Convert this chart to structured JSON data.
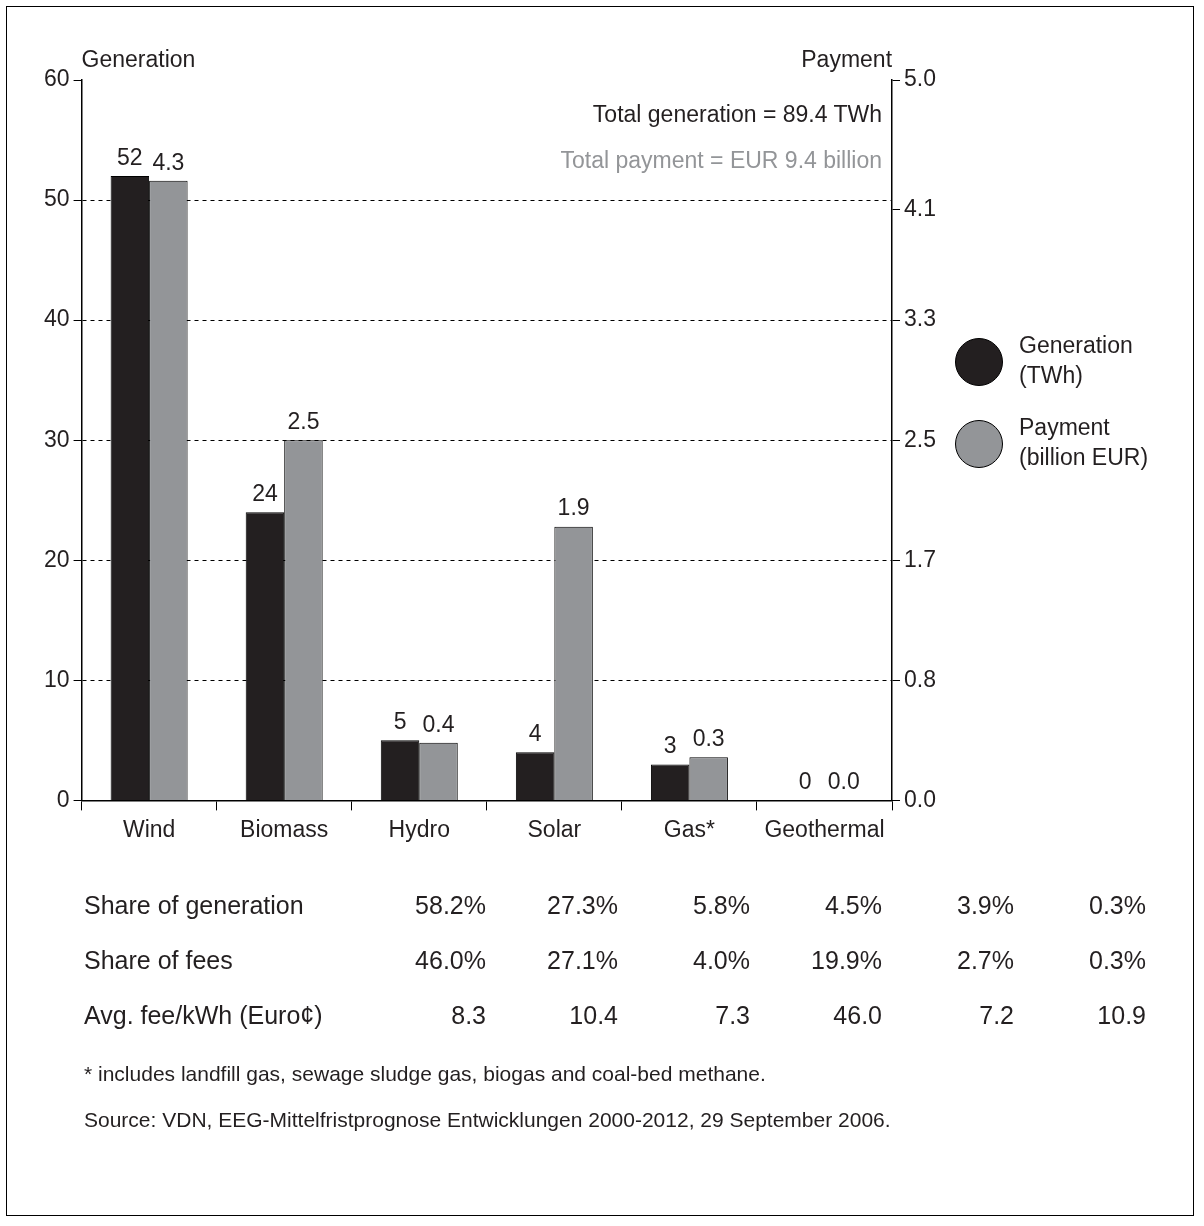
{
  "chart_data": {
    "type": "bar",
    "ylabel": "Generation",
    "y2label": "Payment",
    "categories": [
      "Wind",
      "Biomass",
      "Hydro",
      "Solar",
      "Gas*",
      "Geothermal"
    ],
    "series": [
      {
        "name": "Generation (TWh)",
        "color": "#231f20",
        "values": [
          52,
          24,
          5,
          4,
          3,
          0
        ],
        "value_labels": [
          "52",
          "24",
          "5",
          "4",
          "3",
          "0"
        ]
      },
      {
        "name": "Payment (billion EUR)",
        "color": "#939598",
        "axis": "y2",
        "values": [
          4.3,
          2.5,
          0.4,
          1.9,
          0.3,
          0.0
        ],
        "value_labels": [
          "4.3",
          "2.5",
          "0.4",
          "1.9",
          "0.3",
          "0.0"
        ]
      }
    ],
    "ylim": [
      0,
      60
    ],
    "yticks": [
      0,
      10,
      20,
      30,
      40,
      50,
      60
    ],
    "y2lim": [
      0,
      5
    ],
    "y2ticks": [
      {
        "value": 0,
        "label": "0.0"
      },
      {
        "value": 0.8333,
        "label": "0.8"
      },
      {
        "value": 1.6667,
        "label": "1.7"
      },
      {
        "value": 2.5,
        "label": "2.5"
      },
      {
        "value": 3.3333,
        "label": "3.3"
      },
      {
        "value": 4.1,
        "label": "4.1"
      },
      {
        "value": 5,
        "label": "5.0"
      }
    ],
    "grid": "y",
    "legend": "right",
    "annotations": [
      "Total generation = 89.4 TWh",
      "Total payment = EUR 9.4 billion",
      "Share of generation",
      "58.2%",
      "27.3%",
      "5.8%",
      "4.5%",
      "3.9%",
      "0.3%",
      "Share of fees",
      "46.0%",
      "27.1%",
      "4.0%",
      "19.9%",
      "2.7%",
      "0.3%",
      "Avg. fee/kWh (Euro¢)",
      "8.3",
      "10.4",
      "7.3",
      "46.0",
      "7.2",
      "10.9",
      "* includes landfill gas, sewage sludge gas, biogas and coal-bed methane.",
      "Source: VDN, EEG-Mittelfristprognose Entwicklungen 2000-2012, 29 September 2006."
    ]
  }
}
